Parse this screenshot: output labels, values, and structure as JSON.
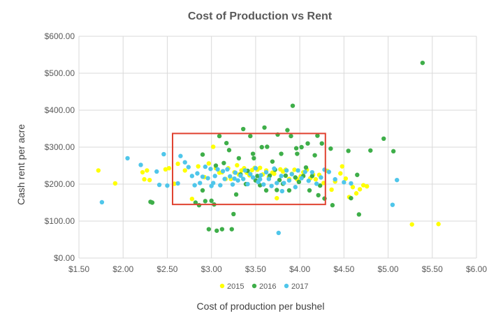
{
  "chart_data": {
    "type": "scatter",
    "title": "Cost of Production  vs Rent",
    "xlabel": "Cost of production per bushel",
    "ylabel": "Cash rent per acre",
    "xlim": [
      1.5,
      6.0
    ],
    "ylim": [
      0,
      600
    ],
    "xticks": [
      "$1.50",
      "$2.00",
      "$2.50",
      "$3.00",
      "$3.50",
      "$4.00",
      "$4.50",
      "$5.00",
      "$5.50",
      "$6.00"
    ],
    "yticks": [
      "$0.00",
      "$100.00",
      "$200.00",
      "$300.00",
      "$400.00",
      "$500.00",
      "$600.00"
    ],
    "grid": true,
    "legend_position": "bottom",
    "highlight_box": {
      "x": [
        2.56,
        4.29
      ],
      "y": [
        145,
        337
      ],
      "color": "#e0412f"
    },
    "series": [
      {
        "name": "2015",
        "color": "#ffff00",
        "points": [
          [
            1.72,
            237
          ],
          [
            1.91,
            202
          ],
          [
            2.22,
            232
          ],
          [
            2.24,
            213
          ],
          [
            2.27,
            237
          ],
          [
            2.3,
            211
          ],
          [
            2.48,
            240
          ],
          [
            2.52,
            243
          ],
          [
            2.58,
            201
          ],
          [
            2.62,
            255
          ],
          [
            2.7,
            237
          ],
          [
            2.78,
            160
          ],
          [
            2.85,
            248
          ],
          [
            2.92,
            219
          ],
          [
            2.97,
            256
          ],
          [
            3.02,
            301
          ],
          [
            3.05,
            243
          ],
          [
            3.09,
            231
          ],
          [
            3.12,
            232
          ],
          [
            3.16,
            214
          ],
          [
            3.19,
            243
          ],
          [
            3.22,
            214
          ],
          [
            3.26,
            232
          ],
          [
            3.29,
            251
          ],
          [
            3.31,
            226
          ],
          [
            3.34,
            237
          ],
          [
            3.37,
            243
          ],
          [
            3.4,
            231
          ],
          [
            3.43,
            224
          ],
          [
            3.46,
            238
          ],
          [
            3.49,
            244
          ],
          [
            3.52,
            239
          ],
          [
            3.55,
            244
          ],
          [
            3.58,
            226
          ],
          [
            3.62,
            237
          ],
          [
            3.65,
            219
          ],
          [
            3.69,
            231
          ],
          [
            3.71,
            228
          ],
          [
            3.74,
            162
          ],
          [
            3.78,
            240
          ],
          [
            3.81,
            234
          ],
          [
            3.84,
            239
          ],
          [
            3.88,
            214
          ],
          [
            3.91,
            228
          ],
          [
            3.94,
            239
          ],
          [
            3.97,
            213
          ],
          [
            4.01,
            221
          ],
          [
            4.04,
            232
          ],
          [
            4.08,
            239
          ],
          [
            4.12,
            216
          ],
          [
            4.15,
            226
          ],
          [
            4.18,
            213
          ],
          [
            4.22,
            225
          ],
          [
            4.27,
            203
          ],
          [
            4.31,
            236
          ],
          [
            4.36,
            185
          ],
          [
            4.4,
            207
          ],
          [
            4.46,
            229
          ],
          [
            4.48,
            248
          ],
          [
            4.52,
            215
          ],
          [
            4.56,
            165
          ],
          [
            4.6,
            192
          ],
          [
            4.64,
            175
          ],
          [
            4.68,
            186
          ],
          [
            4.72,
            197
          ],
          [
            4.76,
            194
          ],
          [
            5.27,
            91
          ],
          [
            5.57,
            92
          ]
        ]
      },
      {
        "name": "2016",
        "color": "#3eae49",
        "points": [
          [
            2.31,
            152
          ],
          [
            2.33,
            150
          ],
          [
            2.82,
            150
          ],
          [
            2.86,
            143
          ],
          [
            2.9,
            183
          ],
          [
            2.93,
            154
          ],
          [
            2.97,
            78
          ],
          [
            3.0,
            155
          ],
          [
            3.03,
            145
          ],
          [
            3.06,
            74
          ],
          [
            3.09,
            330
          ],
          [
            3.12,
            78
          ],
          [
            3.14,
            257
          ],
          [
            3.17,
            311
          ],
          [
            3.2,
            292
          ],
          [
            3.23,
            78
          ],
          [
            3.25,
            119
          ],
          [
            3.28,
            172
          ],
          [
            3.31,
            270
          ],
          [
            3.33,
            226
          ],
          [
            3.36,
            349
          ],
          [
            3.39,
            200
          ],
          [
            3.41,
            236
          ],
          [
            3.44,
            330
          ],
          [
            3.47,
            282
          ],
          [
            3.5,
            210
          ],
          [
            3.52,
            222
          ],
          [
            3.55,
            197
          ],
          [
            3.57,
            300
          ],
          [
            3.6,
            353
          ],
          [
            3.63,
            301
          ],
          [
            3.66,
            223
          ],
          [
            3.69,
            261
          ],
          [
            3.72,
            239
          ],
          [
            3.75,
            334
          ],
          [
            3.77,
            211
          ],
          [
            3.79,
            282
          ],
          [
            3.81,
            201
          ],
          [
            3.84,
            223
          ],
          [
            3.86,
            346
          ],
          [
            3.88,
            183
          ],
          [
            3.9,
            330
          ],
          [
            3.92,
            412
          ],
          [
            3.95,
            218
          ],
          [
            3.97,
            282
          ],
          [
            3.99,
            206
          ],
          [
            4.02,
            300
          ],
          [
            4.04,
            222
          ],
          [
            4.07,
            245
          ],
          [
            4.09,
            310
          ],
          [
            4.11,
            183
          ],
          [
            4.14,
            222
          ],
          [
            4.17,
            278
          ],
          [
            4.2,
            331
          ],
          [
            4.23,
            196
          ],
          [
            4.25,
            310
          ],
          [
            4.28,
            161
          ],
          [
            4.35,
            296
          ],
          [
            4.37,
            143
          ],
          [
            4.55,
            290
          ],
          [
            4.58,
            162
          ],
          [
            4.65,
            225
          ],
          [
            4.67,
            118
          ],
          [
            4.8,
            291
          ],
          [
            4.95,
            323
          ],
          [
            5.06,
            289
          ],
          [
            5.39,
            528
          ],
          [
            2.9,
            280
          ],
          [
            3.05,
            250
          ],
          [
            3.48,
            270
          ],
          [
            3.62,
            183
          ],
          [
            3.74,
            184
          ],
          [
            3.96,
            297
          ],
          [
            4.21,
            170
          ]
        ]
      },
      {
        "name": "2017",
        "color": "#4fc6ea",
        "points": [
          [
            1.76,
            151
          ],
          [
            2.05,
            270
          ],
          [
            2.2,
            252
          ],
          [
            2.38,
            234
          ],
          [
            2.41,
            198
          ],
          [
            2.46,
            281
          ],
          [
            2.5,
            196
          ],
          [
            2.62,
            202
          ],
          [
            2.65,
            276
          ],
          [
            2.7,
            259
          ],
          [
            2.74,
            246
          ],
          [
            2.78,
            222
          ],
          [
            2.81,
            197
          ],
          [
            2.84,
            229
          ],
          [
            2.87,
            203
          ],
          [
            2.9,
            220
          ],
          [
            2.93,
            247
          ],
          [
            2.96,
            216
          ],
          [
            2.99,
            241
          ],
          [
            3.02,
            203
          ],
          [
            3.04,
            222
          ],
          [
            3.07,
            240
          ],
          [
            3.1,
            197
          ],
          [
            3.13,
            235
          ],
          [
            3.15,
            214
          ],
          [
            3.18,
            240
          ],
          [
            3.21,
            221
          ],
          [
            3.24,
            199
          ],
          [
            3.27,
            231
          ],
          [
            3.3,
            210
          ],
          [
            3.33,
            223
          ],
          [
            3.36,
            214
          ],
          [
            3.38,
            237
          ],
          [
            3.41,
            200
          ],
          [
            3.44,
            227
          ],
          [
            3.47,
            218
          ],
          [
            3.5,
            243
          ],
          [
            3.53,
            206
          ],
          [
            3.56,
            224
          ],
          [
            3.59,
            199
          ],
          [
            3.62,
            232
          ],
          [
            3.65,
            214
          ],
          [
            3.68,
            195
          ],
          [
            3.71,
            242
          ],
          [
            3.74,
            203
          ],
          [
            3.76,
            68
          ],
          [
            3.79,
            222
          ],
          [
            3.82,
            203
          ],
          [
            3.85,
            237
          ],
          [
            3.88,
            210
          ],
          [
            3.91,
            227
          ],
          [
            3.95,
            192
          ],
          [
            3.98,
            237
          ],
          [
            4.02,
            216
          ],
          [
            4.06,
            233
          ],
          [
            4.1,
            209
          ],
          [
            4.14,
            232
          ],
          [
            4.19,
            201
          ],
          [
            4.24,
            218
          ],
          [
            4.28,
            239
          ],
          [
            4.33,
            233
          ],
          [
            4.4,
            213
          ],
          [
            4.5,
            205
          ],
          [
            4.58,
            202
          ],
          [
            5.05,
            144
          ],
          [
            5.1,
            211
          ],
          [
            3.0,
            195
          ],
          [
            3.26,
            215
          ],
          [
            3.55,
            213
          ],
          [
            3.8,
            181
          ]
        ]
      }
    ]
  }
}
